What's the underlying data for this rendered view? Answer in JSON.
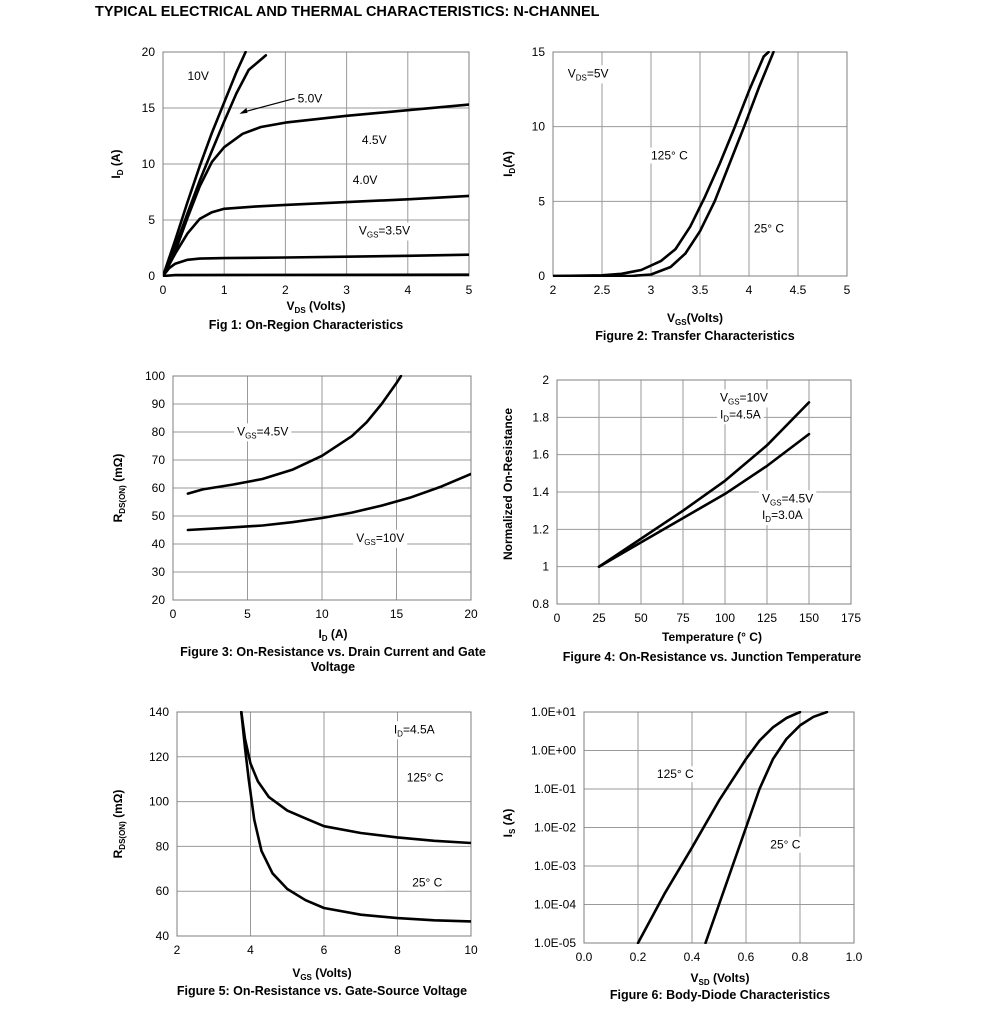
{
  "page_title": "TYPICAL ELECTRICAL AND THERMAL CHARACTERISTICS: N-CHANNEL",
  "chart_data": [
    {
      "id": "fig1",
      "type": "line",
      "title": "Fig 1: On-Region Characteristics",
      "xlabel": {
        "main": "V",
        "sub": "DS",
        "tail": " (Volts)"
      },
      "ylabel": {
        "main": "I",
        "sub": "D",
        "tail": " (A)"
      },
      "xlim": [
        0,
        5
      ],
      "ylim": [
        0,
        20
      ],
      "xticks": [
        "0",
        "1",
        "2",
        "3",
        "4",
        "5"
      ],
      "yticks": [
        "0",
        "5",
        "10",
        "15",
        "20"
      ],
      "grid": true,
      "series": [
        {
          "name": "10V",
          "points": [
            [
              0,
              0
            ],
            [
              0.2,
              3.2
            ],
            [
              0.4,
              6.6
            ],
            [
              0.6,
              9.8
            ],
            [
              0.8,
              12.8
            ],
            [
              1.0,
              15.5
            ],
            [
              1.2,
              18.2
            ],
            [
              1.35,
              20
            ]
          ]
        },
        {
          "name": "5.0V",
          "points": [
            [
              0,
              0
            ],
            [
              0.2,
              2.6
            ],
            [
              0.4,
              5.6
            ],
            [
              0.6,
              8.5
            ],
            [
              0.8,
              11.2
            ],
            [
              1.0,
              13.8
            ],
            [
              1.2,
              16.3
            ],
            [
              1.4,
              18.4
            ],
            [
              1.68,
              19.7
            ]
          ]
        },
        {
          "name": "4.5V",
          "points": [
            [
              0,
              0
            ],
            [
              0.2,
              2.2
            ],
            [
              0.4,
              5.2
            ],
            [
              0.6,
              8.0
            ],
            [
              0.8,
              10.2
            ],
            [
              1.0,
              11.5
            ],
            [
              1.3,
              12.7
            ],
            [
              1.6,
              13.3
            ],
            [
              2.0,
              13.7
            ],
            [
              3.0,
              14.3
            ],
            [
              4.0,
              14.8
            ],
            [
              5.0,
              15.3
            ]
          ]
        },
        {
          "name": "4.0V",
          "points": [
            [
              0,
              0
            ],
            [
              0.2,
              2.0
            ],
            [
              0.4,
              3.8
            ],
            [
              0.6,
              5.1
            ],
            [
              0.8,
              5.7
            ],
            [
              1.0,
              6.0
            ],
            [
              1.5,
              6.2
            ],
            [
              2.0,
              6.35
            ],
            [
              3.0,
              6.6
            ],
            [
              4.0,
              6.85
            ],
            [
              5.0,
              7.15
            ]
          ]
        },
        {
          "name": "3.5V",
          "points": [
            [
              0,
              0
            ],
            [
              0.1,
              0.7
            ],
            [
              0.2,
              1.1
            ],
            [
              0.4,
              1.45
            ],
            [
              0.6,
              1.55
            ],
            [
              1.0,
              1.6
            ],
            [
              2.0,
              1.65
            ],
            [
              3.0,
              1.72
            ],
            [
              4.0,
              1.8
            ],
            [
              5.0,
              1.9
            ]
          ]
        },
        {
          "name": "",
          "points": [
            [
              0,
              0
            ],
            [
              0.2,
              0.08
            ],
            [
              1.0,
              0.1
            ],
            [
              5.0,
              0.12
            ]
          ]
        }
      ],
      "labels": [
        {
          "text": "10V",
          "x": 0.4,
          "y": 17.5
        },
        {
          "text": "5.0V",
          "x": 2.2,
          "y": 15.5
        },
        {
          "text": "4.5V",
          "x": 3.25,
          "y": 11.8
        },
        {
          "text": "4.0V",
          "x": 3.1,
          "y": 8.2
        },
        {
          "text": "V",
          "sub": "GS",
          "tail": "=3.5V",
          "x": 3.2,
          "y": 3.7
        }
      ]
    },
    {
      "id": "fig2",
      "type": "line",
      "title": "Figure 2: Transfer Characteristics",
      "xlabel": {
        "main": "V",
        "sub": "GS",
        "tail": "(Volts)"
      },
      "ylabel": {
        "main": "I",
        "sub": "D",
        "tail": "(A)"
      },
      "xlim": [
        2,
        5
      ],
      "ylim": [
        0,
        15
      ],
      "xticks": [
        "2",
        "2.5",
        "3",
        "3.5",
        "4",
        "4.5",
        "5"
      ],
      "yticks": [
        "0",
        "5",
        "10",
        "15"
      ],
      "grid": true,
      "series": [
        {
          "name": "125° C",
          "points": [
            [
              2.0,
              0
            ],
            [
              2.5,
              0.05
            ],
            [
              2.7,
              0.15
            ],
            [
              2.9,
              0.4
            ],
            [
              3.1,
              1.0
            ],
            [
              3.25,
              1.8
            ],
            [
              3.4,
              3.3
            ],
            [
              3.55,
              5.3
            ],
            [
              3.7,
              7.5
            ],
            [
              3.85,
              9.9
            ],
            [
              4.0,
              12.4
            ],
            [
              4.15,
              14.7
            ],
            [
              4.2,
              15
            ]
          ]
        },
        {
          "name": "25° C",
          "points": [
            [
              2.0,
              0
            ],
            [
              2.8,
              0
            ],
            [
              3.0,
              0.1
            ],
            [
              3.2,
              0.6
            ],
            [
              3.35,
              1.5
            ],
            [
              3.5,
              3.0
            ],
            [
              3.65,
              5.0
            ],
            [
              3.8,
              7.5
            ],
            [
              3.95,
              10.0
            ],
            [
              4.1,
              12.6
            ],
            [
              4.25,
              15
            ]
          ]
        }
      ],
      "labels": [
        {
          "text": "V",
          "sub": "DS",
          "tail": "=5V",
          "x": 2.15,
          "y": 13.3
        },
        {
          "text": "125° C",
          "x": 3.0,
          "y": 7.8
        },
        {
          "text": "25° C",
          "x": 4.05,
          "y": 2.9
        }
      ]
    },
    {
      "id": "fig3",
      "type": "line",
      "title": "Figure 3: On-Resistance vs. Drain Current and Gate Voltage",
      "xlabel": {
        "main": "I",
        "sub": "D",
        "tail": " (A)"
      },
      "ylabel": {
        "main": "R",
        "sub": "DS(ON)",
        "tail": " (mΩ)"
      },
      "xlim": [
        0,
        20
      ],
      "ylim": [
        20,
        100
      ],
      "xticks": [
        "0",
        "5",
        "10",
        "15",
        "20"
      ],
      "yticks": [
        "20",
        "30",
        "40",
        "50",
        "60",
        "70",
        "80",
        "90",
        "100"
      ],
      "grid": true,
      "series": [
        {
          "name": "V_GS=4.5V",
          "points": [
            [
              1,
              58
            ],
            [
              2,
              59.5
            ],
            [
              4,
              61.2
            ],
            [
              6,
              63.2
            ],
            [
              8,
              66.5
            ],
            [
              10,
              71.5
            ],
            [
              12,
              78.5
            ],
            [
              13,
              83.5
            ],
            [
              14,
              90
            ],
            [
              15,
              97.5
            ],
            [
              15.3,
              100
            ]
          ]
        },
        {
          "name": "V_GS=10V",
          "points": [
            [
              1,
              45
            ],
            [
              3,
              45.6
            ],
            [
              6,
              46.6
            ],
            [
              8,
              47.8
            ],
            [
              10,
              49.3
            ],
            [
              12,
              51.2
            ],
            [
              14,
              53.7
            ],
            [
              16,
              56.7
            ],
            [
              18,
              60.5
            ],
            [
              20,
              65
            ]
          ]
        }
      ],
      "labels": [
        {
          "text": "V",
          "sub": "GS",
          "tail": "=4.5V",
          "x": 4.3,
          "y": 78.8
        },
        {
          "text": "V",
          "sub": "GS",
          "tail": "=10V",
          "x": 12.3,
          "y": 40.8
        }
      ]
    },
    {
      "id": "fig4",
      "type": "line",
      "title": "Figure 4: On-Resistance vs. Junction Temperature",
      "xlabel": {
        "main": "Temperature (°  C)",
        "sub": "",
        "tail": ""
      },
      "ylabel": {
        "main": "Normalized On-Resistance",
        "sub": "",
        "tail": ""
      },
      "xlim": [
        0,
        175
      ],
      "ylim": [
        0.8,
        2
      ],
      "xticks": [
        "0",
        "25",
        "50",
        "75",
        "100",
        "125",
        "150",
        "175"
      ],
      "yticks": [
        "0.8",
        "1",
        "1.2",
        "1.4",
        "1.6",
        "1.8",
        "2"
      ],
      "grid": true,
      "series": [
        {
          "name": "V_GS=10V I_D=4.5A",
          "points": [
            [
              25,
              1.0
            ],
            [
              50,
              1.15
            ],
            [
              75,
              1.3
            ],
            [
              100,
              1.46
            ],
            [
              125,
              1.65
            ],
            [
              150,
              1.88
            ]
          ]
        },
        {
          "name": "V_GS=4.5V I_D=3.0A",
          "points": [
            [
              25,
              1.0
            ],
            [
              50,
              1.13
            ],
            [
              75,
              1.26
            ],
            [
              100,
              1.39
            ],
            [
              125,
              1.54
            ],
            [
              150,
              1.71
            ]
          ]
        }
      ],
      "labels": [
        {
          "text": "V",
          "sub": "GS",
          "tail": "=10V",
          "x": 97,
          "y": 1.885
        },
        {
          "text": "I",
          "sub": "D",
          "tail": "=4.5A",
          "x": 97,
          "y": 1.795
        },
        {
          "text": "V",
          "sub": "GS",
          "tail": "=4.5V",
          "x": 122,
          "y": 1.345
        },
        {
          "text": "I",
          "sub": "D",
          "tail": "=3.0A",
          "x": 122,
          "y": 1.255
        }
      ]
    },
    {
      "id": "fig5",
      "type": "line",
      "title": "Figure 5: On-Resistance vs. Gate-Source Voltage",
      "xlabel": {
        "main": "V",
        "sub": "GS",
        "tail": " (Volts)"
      },
      "ylabel": {
        "main": "R",
        "sub": "DS(ON)",
        "tail": " (mΩ)"
      },
      "xlim": [
        2,
        10
      ],
      "ylim": [
        40,
        140
      ],
      "xticks": [
        "2",
        "4",
        "6",
        "8",
        "10"
      ],
      "yticks": [
        "40",
        "60",
        "80",
        "100",
        "120",
        "140"
      ],
      "grid": true,
      "series": [
        {
          "name": "125° C",
          "points": [
            [
              3.75,
              140
            ],
            [
              3.85,
              128
            ],
            [
              4.0,
              117
            ],
            [
              4.2,
              109
            ],
            [
              4.5,
              102
            ],
            [
              5,
              96
            ],
            [
              5.5,
              92.5
            ],
            [
              6,
              89
            ],
            [
              7,
              86
            ],
            [
              8,
              84
            ],
            [
              9,
              82.5
            ],
            [
              10,
              81.5
            ]
          ]
        },
        {
          "name": "25° C",
          "points": [
            [
              3.75,
              140
            ],
            [
              3.85,
              124
            ],
            [
              3.95,
              110
            ],
            [
              4.1,
              92
            ],
            [
              4.3,
              78
            ],
            [
              4.6,
              68
            ],
            [
              5,
              61
            ],
            [
              5.5,
              56
            ],
            [
              6,
              52.5
            ],
            [
              7,
              49.5
            ],
            [
              8,
              48
            ],
            [
              9,
              47
            ],
            [
              10,
              46.5
            ]
          ]
        }
      ],
      "labels": [
        {
          "text": "I",
          "sub": "D",
          "tail": "=4.5A",
          "x": 7.9,
          "y": 130.5
        },
        {
          "text": "125° C",
          "x": 8.25,
          "y": 109
        },
        {
          "text": "25° C",
          "x": 8.4,
          "y": 62
        }
      ]
    },
    {
      "id": "fig6",
      "type": "line",
      "title": "Figure 6: Body-Diode Characteristics",
      "xlabel": {
        "main": "V",
        "sub": "SD",
        "tail": " (Volts)"
      },
      "ylabel": {
        "main": "I",
        "sub": "S",
        "tail": " (A)"
      },
      "xlim": [
        0,
        1
      ],
      "ylim": [
        -5,
        1
      ],
      "yscale": "log10",
      "xticks": [
        "0.0",
        "0.2",
        "0.4",
        "0.6",
        "0.8",
        "1.0"
      ],
      "yticks": [
        "1.0E-05",
        "1.0E-04",
        "1.0E-03",
        "1.0E-02",
        "1.0E-01",
        "1.0E+00",
        "1.0E+01"
      ],
      "grid": true,
      "series": [
        {
          "name": "125° C",
          "points": [
            [
              0.2,
              1e-05
            ],
            [
              0.3,
              0.0002
            ],
            [
              0.4,
              0.003
            ],
            [
              0.5,
              0.05
            ],
            [
              0.6,
              0.6
            ],
            [
              0.65,
              1.8
            ],
            [
              0.7,
              4
            ],
            [
              0.75,
              7
            ],
            [
              0.8,
              10
            ]
          ]
        },
        {
          "name": "25° C",
          "points": [
            [
              0.45,
              1e-05
            ],
            [
              0.5,
              0.0001
            ],
            [
              0.55,
              0.001
            ],
            [
              0.6,
              0.01
            ],
            [
              0.65,
              0.1
            ],
            [
              0.7,
              0.6
            ],
            [
              0.75,
              2
            ],
            [
              0.8,
              4.5
            ],
            [
              0.85,
              7.5
            ],
            [
              0.9,
              10
            ]
          ]
        }
      ],
      "labels": [
        {
          "text": "125° C",
          "x": 0.27,
          "y": -0.72
        },
        {
          "text": "25° C",
          "x": 0.69,
          "y": -2.55
        }
      ]
    }
  ]
}
